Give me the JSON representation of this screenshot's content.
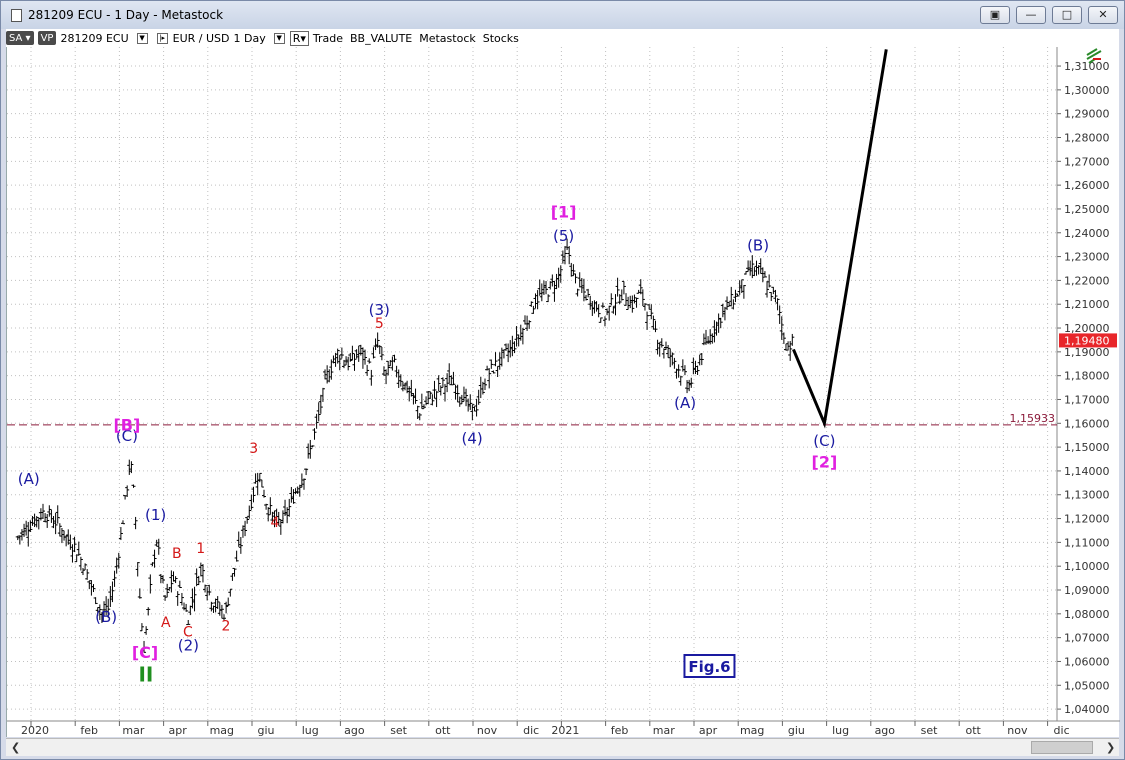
{
  "window": {
    "title": "281209 ECU - 1 Day - Metastock",
    "buttons": [
      "restore",
      "minimize",
      "maximize",
      "close"
    ]
  },
  "toolbar": {
    "sa_label": "SA",
    "vp_label": "VP",
    "symbol": "281209 ECU",
    "pair": "EUR / USD",
    "period": "1 Day",
    "r_label": "R",
    "items": "Trade  BB_VALUTE  Metastock  Stocks"
  },
  "chart_data": {
    "type": "ohlc",
    "title": "",
    "xlabel": "",
    "ylabel": "",
    "ylim": [
      1.035,
      1.318
    ],
    "y_ticks": [
      "1,31000",
      "1,30000",
      "1,29000",
      "1,28000",
      "1,27000",
      "1,26000",
      "1,25000",
      "1,24000",
      "1,23000",
      "1,22000",
      "1,21000",
      "1,20000",
      "1,19000",
      "1,18000",
      "1,17000",
      "1,16000",
      "1,15000",
      "1,14000",
      "1,13000",
      "1,12000",
      "1,11000",
      "1,10000",
      "1,09000",
      "1,08000",
      "1,07000",
      "1,06000",
      "1,05000",
      "1,04000"
    ],
    "x_ticks": [
      "2020",
      "feb",
      "mar",
      "apr",
      "mag",
      "giu",
      "lug",
      "ago",
      "set",
      "ott",
      "nov",
      "dic",
      "2021",
      "feb",
      "mar",
      "apr",
      "mag",
      "giu",
      "lug",
      "ago",
      "set",
      "ott",
      "nov",
      "dic"
    ],
    "x_tick_months": [
      0,
      1,
      2,
      3,
      4,
      5,
      6,
      7,
      8,
      9,
      10,
      11,
      12,
      13,
      14,
      15,
      16,
      17,
      18,
      19,
      20,
      21,
      22,
      23
    ],
    "price_path": [
      [
        -0.3,
        1.112
      ],
      [
        0.0,
        1.118
      ],
      [
        0.3,
        1.123
      ],
      [
        0.6,
        1.118
      ],
      [
        0.8,
        1.112
      ],
      [
        1.0,
        1.108
      ],
      [
        1.2,
        1.1
      ],
      [
        1.4,
        1.09
      ],
      [
        1.6,
        1.08
      ],
      [
        1.75,
        1.082
      ],
      [
        1.9,
        1.095
      ],
      [
        2.05,
        1.115
      ],
      [
        2.15,
        1.13
      ],
      [
        2.25,
        1.145
      ],
      [
        2.35,
        1.125
      ],
      [
        2.45,
        1.09
      ],
      [
        2.55,
        1.065
      ],
      [
        2.65,
        1.08
      ],
      [
        2.75,
        1.1
      ],
      [
        2.85,
        1.112
      ],
      [
        2.95,
        1.095
      ],
      [
        3.05,
        1.085
      ],
      [
        3.2,
        1.095
      ],
      [
        3.4,
        1.088
      ],
      [
        3.55,
        1.078
      ],
      [
        3.7,
        1.09
      ],
      [
        3.85,
        1.1
      ],
      [
        4.05,
        1.088
      ],
      [
        4.2,
        1.083
      ],
      [
        4.4,
        1.08
      ],
      [
        4.55,
        1.095
      ],
      [
        4.75,
        1.11
      ],
      [
        4.95,
        1.125
      ],
      [
        5.15,
        1.14
      ],
      [
        5.35,
        1.125
      ],
      [
        5.55,
        1.118
      ],
      [
        5.75,
        1.12
      ],
      [
        5.95,
        1.13
      ],
      [
        6.2,
        1.14
      ],
      [
        6.45,
        1.158
      ],
      [
        6.7,
        1.18
      ],
      [
        6.95,
        1.19
      ],
      [
        7.2,
        1.185
      ],
      [
        7.45,
        1.19
      ],
      [
        7.7,
        1.182
      ],
      [
        7.85,
        1.195
      ],
      [
        8.0,
        1.18
      ],
      [
        8.2,
        1.185
      ],
      [
        8.4,
        1.178
      ],
      [
        8.6,
        1.172
      ],
      [
        8.8,
        1.165
      ],
      [
        9.0,
        1.17
      ],
      [
        9.25,
        1.175
      ],
      [
        9.5,
        1.178
      ],
      [
        9.75,
        1.172
      ],
      [
        9.95,
        1.165
      ],
      [
        10.1,
        1.168
      ],
      [
        10.3,
        1.18
      ],
      [
        10.55,
        1.185
      ],
      [
        10.8,
        1.19
      ],
      [
        11.0,
        1.195
      ],
      [
        11.2,
        1.202
      ],
      [
        11.4,
        1.212
      ],
      [
        11.65,
        1.215
      ],
      [
        11.9,
        1.22
      ],
      [
        12.05,
        1.228
      ],
      [
        12.15,
        1.233
      ],
      [
        12.3,
        1.22
      ],
      [
        12.5,
        1.215
      ],
      [
        12.75,
        1.21
      ],
      [
        13.0,
        1.205
      ],
      [
        13.2,
        1.212
      ],
      [
        13.4,
        1.215
      ],
      [
        13.6,
        1.21
      ],
      [
        13.8,
        1.215
      ],
      [
        14.0,
        1.205
      ],
      [
        14.2,
        1.195
      ],
      [
        14.4,
        1.19
      ],
      [
        14.6,
        1.185
      ],
      [
        14.75,
        1.18
      ],
      [
        14.9,
        1.176
      ],
      [
        15.05,
        1.183
      ],
      [
        15.2,
        1.19
      ],
      [
        15.4,
        1.198
      ],
      [
        15.6,
        1.205
      ],
      [
        15.8,
        1.21
      ],
      [
        16.0,
        1.215
      ],
      [
        16.15,
        1.22
      ],
      [
        16.3,
        1.225
      ],
      [
        16.45,
        1.224
      ],
      [
        16.6,
        1.22
      ],
      [
        16.75,
        1.215
      ],
      [
        16.9,
        1.21
      ],
      [
        17.0,
        1.2
      ],
      [
        17.1,
        1.192
      ],
      [
        17.25,
        1.194
      ]
    ],
    "projection": [
      [
        17.25,
        1.191
      ],
      [
        17.95,
        1.16
      ],
      [
        19.35,
        1.317
      ]
    ],
    "current_price_label": "1,19480",
    "current_price": 1.1948,
    "hline_value": 1.15933,
    "hline_label": "1,15933",
    "figure_label": "Fig.6",
    "wave_labels": [
      {
        "text": "(A)",
        "m": -0.05,
        "v": 1.1345,
        "color": "#1a1aa0",
        "size": 15
      },
      {
        "text": "(B)",
        "m": 1.7,
        "v": 1.0765,
        "color": "#1a1aa0",
        "size": 15
      },
      {
        "text": "(C)",
        "m": 2.17,
        "v": 1.1525,
        "color": "#1a1aa0",
        "size": 15
      },
      {
        "text": "[B]",
        "m": 2.17,
        "v": 1.157,
        "color": "#e020e0",
        "size": 16,
        "bold": true
      },
      {
        "text": "[C]",
        "m": 2.58,
        "v": 1.0615,
        "color": "#e020e0",
        "size": 16,
        "bold": true
      },
      {
        "text": "II",
        "m": 2.6,
        "v": 1.0515,
        "color": "#1f8f1f",
        "size": 20,
        "bold": true
      },
      {
        "text": "(1)",
        "m": 2.82,
        "v": 1.1195,
        "color": "#1a1aa0",
        "size": 15
      },
      {
        "text": "A",
        "m": 3.05,
        "v": 1.0745,
        "color": "#d41818",
        "size": 14
      },
      {
        "text": "B",
        "m": 3.3,
        "v": 1.1035,
        "color": "#d41818",
        "size": 14
      },
      {
        "text": "C",
        "m": 3.55,
        "v": 1.0705,
        "color": "#d41818",
        "size": 14
      },
      {
        "text": "(2)",
        "m": 3.56,
        "v": 1.0645,
        "color": "#1a1aa0",
        "size": 15
      },
      {
        "text": "1",
        "m": 3.84,
        "v": 1.1055,
        "color": "#d41818",
        "size": 14
      },
      {
        "text": "2",
        "m": 4.41,
        "v": 1.073,
        "color": "#d41818",
        "size": 14
      },
      {
        "text": "3",
        "m": 5.04,
        "v": 1.1475,
        "color": "#d41818",
        "size": 14
      },
      {
        "text": "4",
        "m": 5.52,
        "v": 1.1165,
        "color": "#d41818",
        "size": 14
      },
      {
        "text": "(3)",
        "m": 7.88,
        "v": 1.2055,
        "color": "#1a1aa0",
        "size": 15
      },
      {
        "text": "5",
        "m": 7.88,
        "v": 1.2,
        "color": "#d41818",
        "size": 14
      },
      {
        "text": "(4)",
        "m": 9.98,
        "v": 1.1515,
        "color": "#1a1aa0",
        "size": 15
      },
      {
        "text": "[1]",
        "m": 12.05,
        "v": 1.2465,
        "color": "#e020e0",
        "size": 16,
        "bold": true
      },
      {
        "text": "(5)",
        "m": 12.05,
        "v": 1.2365,
        "color": "#1a1aa0",
        "size": 15
      },
      {
        "text": "(A)",
        "m": 14.8,
        "v": 1.1665,
        "color": "#1a1aa0",
        "size": 15
      },
      {
        "text": "(B)",
        "m": 16.45,
        "v": 1.2325,
        "color": "#1a1aa0",
        "size": 15
      },
      {
        "text": "(C)",
        "m": 17.95,
        "v": 1.1505,
        "color": "#1a1aa0",
        "size": 15
      },
      {
        "text": "[2]",
        "m": 17.95,
        "v": 1.1415,
        "color": "#e020e0",
        "size": 16,
        "bold": true
      }
    ]
  },
  "colors": {
    "grid": "#c0c0c0",
    "axis_text": "#333333",
    "price_label_bg": "#e8262a",
    "hline": "#8b1a3a",
    "bars": "#000000"
  }
}
